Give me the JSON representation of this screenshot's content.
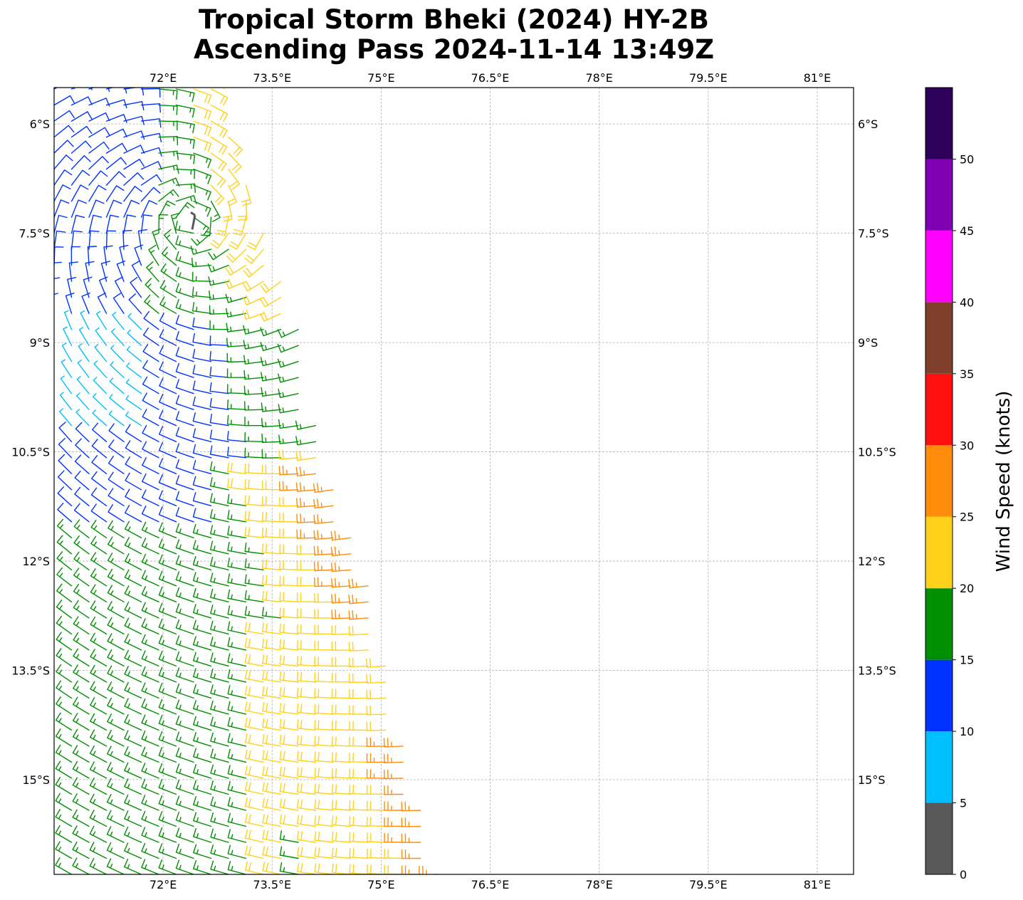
{
  "title": {
    "line1": "Tropical Storm Bheki (2024) HY-2B",
    "line2": "Ascending Pass 2024-11-14 13:49Z"
  },
  "map": {
    "lon_range": [
      70.5,
      81.5
    ],
    "lat_range": [
      -16.3,
      -5.5
    ],
    "lon_ticks": [
      {
        "value": 72.0,
        "label": "72°E"
      },
      {
        "value": 73.5,
        "label": "73.5°E"
      },
      {
        "value": 75.0,
        "label": "75°E"
      },
      {
        "value": 76.5,
        "label": "76.5°E"
      },
      {
        "value": 78.0,
        "label": "78°E"
      },
      {
        "value": 79.5,
        "label": "79.5°E"
      },
      {
        "value": 81.0,
        "label": "81°E"
      }
    ],
    "lat_ticks": [
      {
        "value": -6.0,
        "label": "6°S"
      },
      {
        "value": -7.5,
        "label": "7.5°S"
      },
      {
        "value": -9.0,
        "label": "9°S"
      },
      {
        "value": -10.5,
        "label": "10.5°S"
      },
      {
        "value": -12.0,
        "label": "12°S"
      },
      {
        "value": -13.5,
        "label": "13.5°S"
      },
      {
        "value": -15.0,
        "label": "15°S"
      }
    ],
    "gridlines": true,
    "storm_center": {
      "lon": 72.4,
      "lat": -7.35
    }
  },
  "colorbar": {
    "label": "Wind Speed (knots)",
    "range": [
      0,
      55
    ],
    "bins": [
      {
        "min": 0,
        "max": 5,
        "color": "#595959"
      },
      {
        "min": 5,
        "max": 10,
        "color": "#00bfff"
      },
      {
        "min": 10,
        "max": 15,
        "color": "#0033ff"
      },
      {
        "min": 15,
        "max": 20,
        "color": "#008f00"
      },
      {
        "min": 20,
        "max": 25,
        "color": "#ffd11a"
      },
      {
        "min": 25,
        "max": 30,
        "color": "#ff8c0a"
      },
      {
        "min": 30,
        "max": 35,
        "color": "#ff1010"
      },
      {
        "min": 35,
        "max": 40,
        "color": "#803f2a"
      },
      {
        "min": 40,
        "max": 45,
        "color": "#ff00ff"
      },
      {
        "min": 45,
        "max": 50,
        "color": "#8000b3"
      },
      {
        "min": 50,
        "max": 55,
        "color": "#2d0059"
      }
    ],
    "ticks": [
      "0",
      "5",
      "10",
      "15",
      "20",
      "25",
      "30",
      "35",
      "40",
      "45",
      "50"
    ]
  },
  "chart_data": {
    "type": "wind_barbs",
    "units": "knots",
    "swath_edge": [
      {
        "lat": -5.4,
        "lon": 72.7
      },
      {
        "lat": -7.0,
        "lon": 73.2
      },
      {
        "lat": -8.5,
        "lon": 73.8
      },
      {
        "lat": -10.5,
        "lon": 74.2
      },
      {
        "lat": -12.5,
        "lon": 74.9
      },
      {
        "lat": -14.5,
        "lon": 75.3
      },
      {
        "lat": -16.3,
        "lon": 75.8
      }
    ],
    "storm_center": {
      "lon": 72.4,
      "lat": -7.35
    },
    "regions": [
      {
        "area": "north swath near storm",
        "speed_range": [
          15,
          20
        ],
        "color": "#008f00"
      },
      {
        "area": "northeast swath edge",
        "speed_range": [
          20,
          25
        ],
        "color": "#ffd11a"
      },
      {
        "area": "west of center",
        "speed_range": [
          10,
          15
        ],
        "color": "#0033ff"
      },
      {
        "area": "southwest near 9°S",
        "speed_range": [
          5,
          10
        ],
        "color": "#00bfff"
      },
      {
        "area": "southeast near 11-12.5°S",
        "speed_range": [
          25,
          30
        ],
        "color": "#ff8c0a"
      },
      {
        "area": "south swath west",
        "speed_range": [
          15,
          20
        ],
        "color": "#008f00"
      },
      {
        "area": "south swath east",
        "speed_range": [
          20,
          25
        ],
        "color": "#ffd11a"
      }
    ]
  }
}
